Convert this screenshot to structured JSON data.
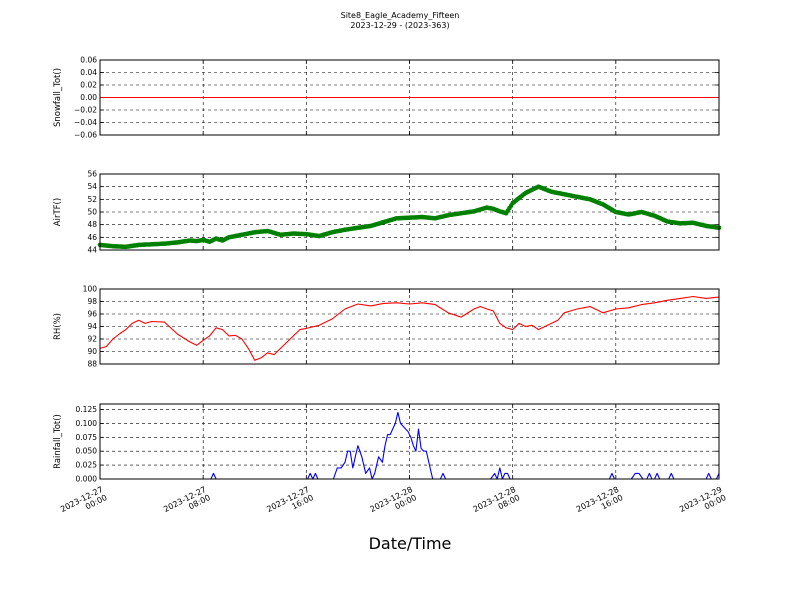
{
  "title": "Site8_Eagle_Academy_Fifteen",
  "subtitle": "2023-12-29 - (2023-363)",
  "xlabel": "Date/Time",
  "x_ticks": [
    {
      "l1": "2023-12-27",
      "l2": "00:00"
    },
    {
      "l1": "2023-12-27",
      "l2": "08:00"
    },
    {
      "l1": "2023-12-27",
      "l2": "16:00"
    },
    {
      "l1": "2023-12-28",
      "l2": "00:00"
    },
    {
      "l1": "2023-12-28",
      "l2": "08:00"
    },
    {
      "l1": "2023-12-28",
      "l2": "16:00"
    },
    {
      "l1": "2023-12-29",
      "l2": "00:00"
    }
  ],
  "chart_data": [
    {
      "type": "line",
      "ylabel": "Snowfall_Tot()",
      "color": "#ff0000",
      "marker": false,
      "xlim": [
        0,
        48
      ],
      "ylim": [
        -0.06,
        0.06
      ],
      "yticks": [
        "0.06",
        "0.04",
        "0.02",
        "0.00",
        "−0.02",
        "−0.04",
        "−0.06"
      ],
      "x": [
        0,
        48
      ],
      "y": [
        0,
        0
      ]
    },
    {
      "type": "line",
      "ylabel": "AirTF()",
      "color": "#008000",
      "marker": true,
      "xlim": [
        0,
        48
      ],
      "ylim": [
        44,
        56
      ],
      "yticks": [
        "56",
        "54",
        "52",
        "50",
        "48",
        "46",
        "44"
      ],
      "x": [
        0,
        1,
        2,
        3,
        4,
        5,
        6,
        7,
        7.5,
        8,
        8.5,
        9,
        9.5,
        10,
        11,
        12,
        13,
        14,
        15,
        16,
        17,
        18,
        19,
        20,
        21,
        22,
        23,
        24,
        25,
        26,
        27,
        28,
        29,
        30,
        30.5,
        31,
        31.5,
        32,
        33,
        34,
        35,
        36,
        37,
        38,
        39,
        40,
        41,
        42,
        43,
        44,
        45,
        46,
        47,
        48
      ],
      "y": [
        44.8,
        44.6,
        44.5,
        44.8,
        44.9,
        45,
        45.2,
        45.5,
        45.4,
        45.6,
        45.3,
        45.8,
        45.5,
        46,
        46.4,
        46.8,
        47,
        46.4,
        46.6,
        46.5,
        46.2,
        46.8,
        47.2,
        47.5,
        47.8,
        48.4,
        49,
        49.1,
        49.2,
        49,
        49.5,
        49.8,
        50.1,
        50.7,
        50.5,
        50.1,
        49.8,
        51.4,
        53,
        54,
        53.2,
        52.8,
        52.4,
        52,
        51.2,
        50,
        49.6,
        50,
        49.4,
        48.5,
        48.2,
        48.3,
        47.8,
        47.5
      ]
    },
    {
      "type": "line",
      "ylabel": "RH(%)",
      "color": "#ff0000",
      "marker": false,
      "xlim": [
        0,
        48
      ],
      "ylim": [
        88,
        100
      ],
      "yticks": [
        "100",
        "98",
        "96",
        "94",
        "92",
        "90",
        "88"
      ],
      "x": [
        0,
        0.5,
        1,
        1.5,
        2,
        2.5,
        3,
        3.5,
        4,
        5,
        6,
        7,
        7.5,
        8,
        8.5,
        9,
        9.5,
        10,
        10.5,
        11,
        11.5,
        12,
        12.5,
        13,
        13.5,
        14,
        14.5,
        15,
        15.5,
        16,
        17,
        18,
        19,
        20,
        21,
        22,
        23,
        24,
        25,
        26,
        27,
        28,
        29,
        29.5,
        30,
        30.5,
        31,
        31.5,
        32,
        32.5,
        33,
        33.5,
        34,
        34.5,
        35,
        35.5,
        36,
        36.5,
        37,
        37.5,
        38,
        39,
        40,
        41,
        42,
        43,
        44,
        45,
        46,
        47,
        48
      ],
      "y": [
        90.5,
        90.8,
        92,
        92.8,
        93.5,
        94.5,
        95,
        94.5,
        94.8,
        94.7,
        92.8,
        91.5,
        91,
        91.8,
        92.5,
        93.8,
        93.5,
        92.5,
        92.6,
        92,
        90.5,
        88.6,
        89,
        89.8,
        89.5,
        90.5,
        91.5,
        92.5,
        93.5,
        93.7,
        94.2,
        95.2,
        96.8,
        97.6,
        97.3,
        97.7,
        97.8,
        97.6,
        97.8,
        97.5,
        96.2,
        95.5,
        96.8,
        97.2,
        96.8,
        96.5,
        94.5,
        93.8,
        93.5,
        94.5,
        94,
        94.2,
        93.5,
        94,
        94.5,
        95,
        96.2,
        96.5,
        96.8,
        97,
        97.2,
        96.2,
        96.8,
        97,
        97.5,
        97.8,
        98.2,
        98.5,
        98.8,
        98.5,
        98.7
      ]
    },
    {
      "type": "line",
      "ylabel": "Rainfall_Tot()",
      "color": "#0000ff",
      "marker": false,
      "xlim": [
        0,
        48
      ],
      "ylim": [
        0,
        0.135
      ],
      "yticks": [
        "0.125",
        "0.100",
        "0.075",
        "0.050",
        "0.025",
        "0.000"
      ],
      "x": [
        0,
        8.6,
        8.8,
        9,
        16.1,
        16.3,
        16.5,
        16.7,
        16.9,
        17.1,
        18.1,
        18.4,
        18.7,
        19,
        19.2,
        19.4,
        19.6,
        19.8,
        20,
        20.3,
        20.6,
        20.9,
        21.1,
        21.3,
        21.6,
        21.9,
        22.1,
        22.3,
        22.5,
        22.7,
        22.9,
        23.1,
        23.3,
        23.5,
        23.7,
        23.9,
        24.1,
        24.3,
        24.5,
        24.7,
        24.9,
        25.1,
        25.3,
        25.6,
        25.8,
        26,
        26.2,
        26.4,
        26.6,
        26.8,
        27,
        27.2,
        27.4,
        27.6,
        30.3,
        30.6,
        30.8,
        31,
        31.2,
        31.4,
        31.6,
        31.8,
        32,
        39.5,
        39.7,
        39.9,
        41.2,
        41.5,
        41.8,
        42.1,
        42.4,
        42.6,
        42.8,
        43,
        43.2,
        43.4,
        44.1,
        44.3,
        44.5,
        47,
        47.2,
        47.4,
        47.8,
        48
      ],
      "y": [
        0,
        0,
        0.01,
        0,
        0,
        0.01,
        0,
        0.01,
        0,
        0,
        0,
        0.02,
        0.02,
        0.03,
        0.05,
        0.05,
        0.02,
        0.04,
        0.06,
        0.04,
        0.01,
        0.02,
        0,
        0.01,
        0.04,
        0.03,
        0.06,
        0.08,
        0.08,
        0.09,
        0.1,
        0.12,
        0.1,
        0.095,
        0.09,
        0.085,
        0.075,
        0.06,
        0.05,
        0.09,
        0.055,
        0.05,
        0.05,
        0.02,
        0,
        0,
        0,
        0,
        0.01,
        0,
        0,
        0,
        0,
        0,
        0,
        0.01,
        0,
        0.02,
        0,
        0.01,
        0.01,
        0,
        0,
        0,
        0.01,
        0,
        0,
        0.01,
        0.01,
        0,
        0,
        0.01,
        0,
        0,
        0.01,
        0,
        0,
        0.01,
        0,
        0,
        0.01,
        0,
        0,
        0.01
      ]
    }
  ]
}
